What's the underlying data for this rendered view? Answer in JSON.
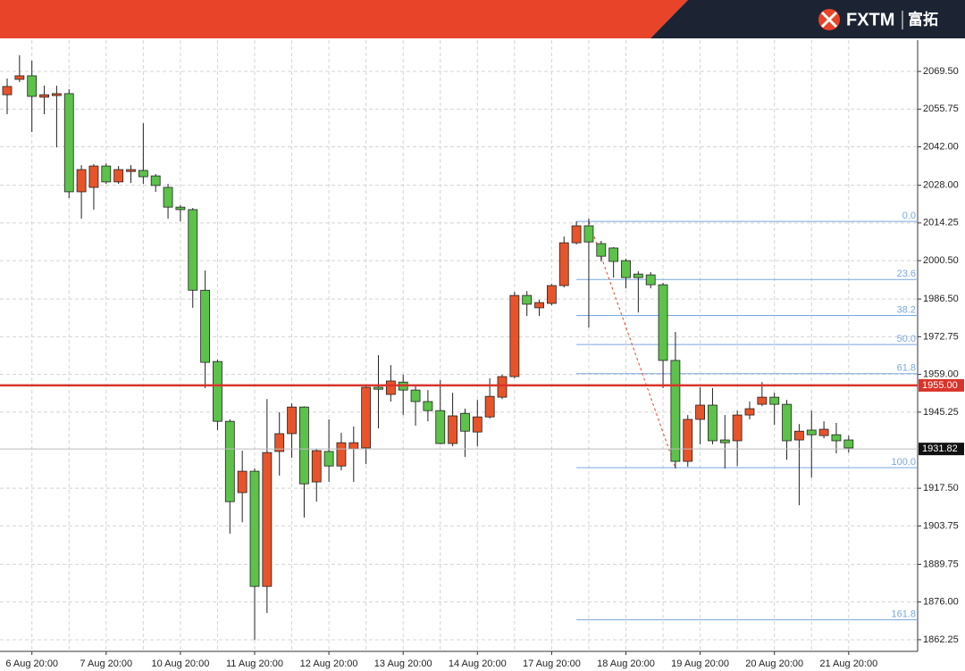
{
  "header": {
    "brand": "FXTM",
    "brand_cn": "富拓"
  },
  "chart_data": {
    "type": "candlestick",
    "categories": [
      null,
      null,
      "6 Aug 20:00",
      null,
      null,
      null,
      null,
      null,
      "7 Aug 20:00",
      null,
      null,
      null,
      null,
      null,
      "10 Aug 20:00",
      null,
      null,
      null,
      null,
      null,
      "11 Aug 20:00",
      null,
      null,
      null,
      null,
      null,
      "12 Aug 20:00",
      null,
      null,
      null,
      null,
      null,
      "13 Aug 20:00",
      null,
      null,
      null,
      null,
      null,
      "14 Aug 20:00",
      null,
      null,
      null,
      null,
      null,
      "17 Aug 20:00",
      null,
      null,
      null,
      null,
      null,
      "18 Aug 20:00",
      null,
      null,
      null,
      null,
      null,
      "19 Aug 20:00",
      null,
      null,
      null,
      null,
      null,
      "20 Aug 20:00",
      null,
      null,
      null,
      null,
      null,
      "21 Aug 20:00"
    ],
    "open": [
      2061.0,
      2066.6,
      2067.9,
      2060.1,
      2060.7,
      2061.4,
      2025.6,
      2027.2,
      2035.0,
      2029.2,
      2033.0,
      2033.4,
      2031.4,
      2027.2,
      2020.0,
      2019.1,
      1989.7,
      1963.7,
      1941.9,
      1915.9,
      1923.7,
      1881.7,
      1930.9,
      1937.4,
      1947.1,
      1919.8,
      1930.9,
      1925.6,
      1931.9,
      1932.2,
      1954.3,
      1951.7,
      1956.2,
      1953.3,
      1949.1,
      1945.8,
      1933.8,
      1944.8,
      1938.0,
      1943.5,
      1950.7,
      1958.2,
      1987.8,
      1983.3,
      1984.9,
      1991.4,
      2007.0,
      2013.2,
      2006.7,
      2005.1,
      2000.5,
      1995.6,
      1995.3,
      1991.7,
      1964.1,
      1927.3,
      1942.6,
      1947.8,
      1935.1,
      1934.8,
      1944.2,
      1948.1,
      1950.7,
      1948.1,
      1935.1,
      1938.7,
      1936.7,
      1937.0,
      1935.1
    ],
    "high": [
      2066.9,
      2075.4,
      2073.4,
      2064.3,
      2064.3,
      2063.0,
      2035.3,
      2035.7,
      2036.0,
      2035.0,
      2035.3,
      2050.6,
      2032.1,
      2028.5,
      2020.7,
      2019.7,
      1996.9,
      1964.4,
      1942.6,
      1931.2,
      1924.7,
      1950.0,
      1945.2,
      1948.4,
      1947.4,
      1931.9,
      1942.6,
      1937.7,
      1940.0,
      1954.9,
      1966.0,
      1962.4,
      1958.9,
      1954.9,
      1953.3,
      1956.9,
      1952.3,
      1946.5,
      1949.7,
      1957.6,
      1958.9,
      1989.1,
      1989.4,
      1986.2,
      1992.0,
      2009.3,
      2014.8,
      2015.8,
      2007.7,
      2005.4,
      2001.2,
      1996.6,
      1996.3,
      1992.4,
      1974.5,
      1944.2,
      1954.3,
      1954.0,
      1944.2,
      1945.8,
      1949.1,
      1956.2,
      1952.3,
      1949.7,
      1940.9,
      1945.8,
      1941.9,
      1941.3,
      1936.7
    ],
    "low": [
      2053.9,
      2065.6,
      2047.4,
      2053.9,
      2041.8,
      2023.3,
      2015.8,
      2019.1,
      2028.5,
      2028.5,
      2028.8,
      2028.5,
      2025.6,
      2015.8,
      2014.8,
      1983.3,
      1954.0,
      1938.7,
      1900.9,
      1905.1,
      1862.2,
      1872.0,
      1922.1,
      1928.6,
      1906.8,
      1912.6,
      1919.8,
      1924.0,
      1919.8,
      1926.3,
      1939.3,
      1949.1,
      1944.2,
      1940.3,
      1941.9,
      1933.5,
      1932.8,
      1928.9,
      1932.8,
      1942.9,
      1950.0,
      1957.6,
      1980.3,
      1980.3,
      1984.2,
      1990.7,
      2006.4,
      1976.1,
      2000.2,
      1994.3,
      1990.4,
      1981.6,
      1990.4,
      1954.0,
      1924.7,
      1925.3,
      1933.5,
      1933.5,
      1924.7,
      1925.6,
      1942.6,
      1947.4,
      1940.6,
      1927.9,
      1911.3,
      1921.4,
      1935.7,
      1930.2,
      1930.5
    ],
    "close": [
      2064.0,
      2067.9,
      2060.4,
      2061.0,
      2061.4,
      2025.6,
      2033.7,
      2035.0,
      2029.2,
      2033.7,
      2033.7,
      2031.1,
      2027.9,
      2020.0,
      2019.1,
      1989.7,
      1963.4,
      1941.9,
      1912.6,
      1923.7,
      1881.7,
      1930.5,
      1937.4,
      1947.1,
      1919.1,
      1931.2,
      1925.6,
      1934.1,
      1934.1,
      1954.3,
      1953.6,
      1956.6,
      1953.3,
      1949.1,
      1945.8,
      1933.8,
      1943.9,
      1938.3,
      1943.5,
      1951.0,
      1958.2,
      1987.8,
      1984.6,
      1985.2,
      1991.4,
      2007.0,
      2013.2,
      2007.3,
      2002.1,
      2000.2,
      1994.3,
      1994.3,
      1991.7,
      1964.1,
      1927.3,
      1942.6,
      1947.8,
      1934.8,
      1934.1,
      1944.2,
      1946.5,
      1950.7,
      1948.1,
      1934.8,
      1938.3,
      1937.0,
      1939.0,
      1934.8,
      1932.2
    ],
    "up_color": "#e8542a",
    "down_color": "#5cc24a",
    "ylim": [
      1858.0,
      2080.9
    ],
    "yticks": [
      {
        "value": 2069.5,
        "label": "2069.50"
      },
      {
        "value": 2055.75,
        "label": "2055.75"
      },
      {
        "value": 2042.0,
        "label": "2042.00"
      },
      {
        "value": 2028.0,
        "label": "2028.00"
      },
      {
        "value": 2014.25,
        "label": "2014.25"
      },
      {
        "value": 2000.5,
        "label": "2000.50"
      },
      {
        "value": 1986.5,
        "label": "1986.50"
      },
      {
        "value": 1972.75,
        "label": "1972.75"
      },
      {
        "value": 1959.0,
        "label": "1959.00"
      },
      {
        "value": 1945.25,
        "label": "1945.25"
      },
      {
        "value": 1917.5,
        "label": "1917.50"
      },
      {
        "value": 1903.75,
        "label": "1903.75"
      },
      {
        "value": 1889.75,
        "label": "1889.75"
      },
      {
        "value": 1876.0,
        "label": "1876.00"
      },
      {
        "value": 1862.25,
        "label": "1862.25"
      }
    ],
    "grid": true,
    "hline": {
      "value": 1955.0,
      "label": "1955.00",
      "color": "#d9342b"
    },
    "last_price": {
      "value": 1931.82,
      "label": "1931.82"
    },
    "fibonacci": {
      "ratios": [
        "0.0",
        "23.6",
        "38.2",
        "50.0",
        "61.8",
        "100.0",
        "161.8"
      ],
      "prices": [
        2014.8,
        1993.6,
        1980.5,
        1969.9,
        1959.3,
        1925.0,
        1869.5
      ],
      "color": "#7aa7e0"
    }
  }
}
